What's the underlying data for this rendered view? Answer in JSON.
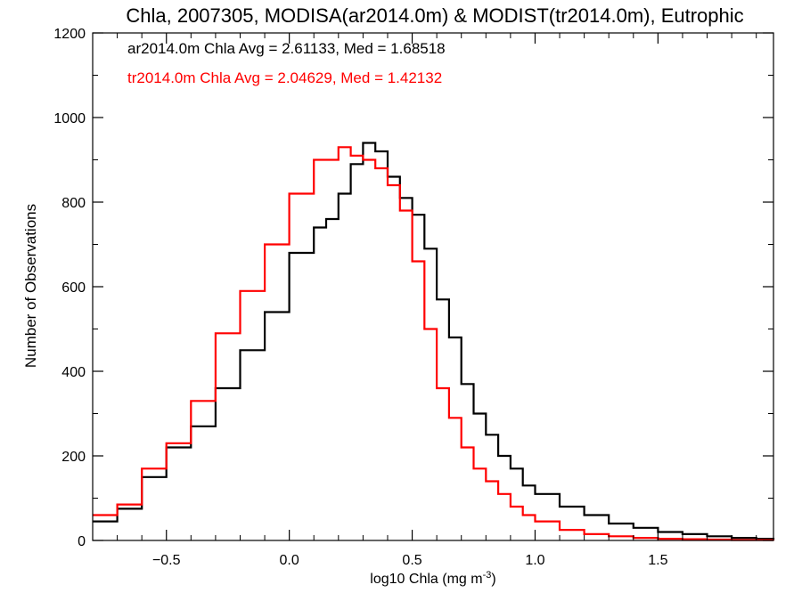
{
  "chart_data": {
    "type": "line",
    "title": "Chla, 2007305, MODISA(ar2014.0m) & MODIST(tr2014.0m), Eutrophic",
    "xlabel": "log10 Chla (mg m",
    "xlabel_sup": "-3",
    "xlabel_close": ")",
    "ylabel": "Number of Observations",
    "xlim": [
      -0.8,
      1.97
    ],
    "ylim": [
      0,
      1200
    ],
    "xticks": [
      -0.5,
      0.0,
      0.5,
      1.0,
      1.5
    ],
    "xtick_labels": [
      "−0.5",
      "0.0",
      "0.5",
      "1.0",
      "1.5"
    ],
    "yticks": [
      0,
      200,
      400,
      600,
      800,
      1000,
      1200
    ],
    "ytick_labels": [
      "0",
      "200",
      "400",
      "600",
      "800",
      "1000",
      "1200"
    ],
    "grid": false,
    "annotations": [
      {
        "text": "ar2014.0m Chla Avg = 2.61133, Med = 1.68518",
        "color": "#000000"
      },
      {
        "text": "tr2014.0m Chla Avg = 2.04629, Med = 1.42132",
        "color": "#ff0000"
      }
    ],
    "series": [
      {
        "color": "#000000",
        "x": [
          -0.8,
          -0.7,
          -0.6,
          -0.5,
          -0.4,
          -0.3,
          -0.2,
          -0.1,
          0.0,
          0.1,
          0.15,
          0.2,
          0.25,
          0.3,
          0.35,
          0.4,
          0.45,
          0.5,
          0.55,
          0.6,
          0.65,
          0.7,
          0.75,
          0.8,
          0.85,
          0.9,
          0.95,
          1.0,
          1.1,
          1.2,
          1.3,
          1.4,
          1.5,
          1.6,
          1.7,
          1.8,
          1.9,
          1.97
        ],
        "y": [
          45,
          75,
          150,
          220,
          270,
          360,
          450,
          540,
          680,
          740,
          760,
          820,
          890,
          940,
          920,
          860,
          810,
          770,
          690,
          570,
          480,
          370,
          300,
          250,
          200,
          170,
          130,
          110,
          80,
          60,
          40,
          30,
          20,
          15,
          10,
          6,
          4,
          3
        ]
      },
      {
        "color": "#ff0000",
        "x": [
          -0.8,
          -0.7,
          -0.6,
          -0.5,
          -0.4,
          -0.3,
          -0.2,
          -0.1,
          0.0,
          0.1,
          0.15,
          0.2,
          0.25,
          0.3,
          0.35,
          0.4,
          0.45,
          0.5,
          0.55,
          0.6,
          0.65,
          0.7,
          0.75,
          0.8,
          0.85,
          0.9,
          0.95,
          1.0,
          1.1,
          1.2,
          1.3,
          1.4,
          1.5,
          1.6,
          1.7,
          1.8,
          1.9,
          1.97
        ],
        "y": [
          60,
          85,
          170,
          230,
          330,
          490,
          590,
          700,
          820,
          900,
          900,
          930,
          910,
          900,
          880,
          840,
          780,
          660,
          500,
          360,
          290,
          220,
          170,
          140,
          110,
          80,
          60,
          45,
          25,
          15,
          10,
          6,
          4,
          3,
          2,
          1,
          1,
          0
        ]
      }
    ]
  }
}
